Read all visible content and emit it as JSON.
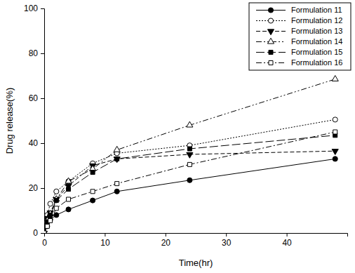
{
  "chart_data": {
    "type": "line",
    "x_label": "Time(hr)",
    "y_label": "Drug release(%)",
    "x": [
      0,
      0.5,
      1,
      2,
      4,
      8,
      12,
      24,
      48
    ],
    "series": [
      {
        "name": "Formulation 11",
        "color": "#000000",
        "marker": "circle",
        "line_style": "solid",
        "values": [
          0,
          3,
          6,
          8,
          10.5,
          14.5,
          18.5,
          23.5,
          33
        ]
      },
      {
        "name": "Formulation 12",
        "color": "#000000",
        "marker": "circle-open",
        "line_style": "dotted",
        "values": [
          0,
          8,
          13,
          18.5,
          23,
          31,
          35.5,
          39,
          50.5
        ]
      },
      {
        "name": "Formulation 13",
        "color": "#000000",
        "marker": "triangle-down",
        "line_style": "dashed",
        "values": [
          0,
          6.5,
          9,
          15,
          21,
          30,
          33,
          35,
          36.5
        ]
      },
      {
        "name": "Formulation 14",
        "color": "#000000",
        "marker": "triangle-up-open",
        "line_style": "dash-dot-dot",
        "values": [
          0,
          5.5,
          8.5,
          15,
          23,
          28.5,
          37,
          48,
          68.5
        ]
      },
      {
        "name": "Formulation 15",
        "color": "#000000",
        "marker": "square",
        "line_style": "long-dash",
        "values": [
          0,
          5,
          8,
          14.5,
          19.5,
          27,
          33,
          37.5,
          43.5
        ]
      },
      {
        "name": "Formulation 16",
        "color": "#000000",
        "marker": "square-open",
        "line_style": "dash-dot",
        "values": [
          0,
          3,
          5.5,
          11,
          15,
          18.5,
          22,
          30.5,
          45
        ]
      }
    ],
    "xlim": [
      0,
      50
    ],
    "xticks": [
      0,
      10,
      20,
      30,
      40
    ],
    "ylim": [
      0,
      100
    ],
    "yticks": [
      0,
      20,
      40,
      60,
      80,
      100
    ],
    "grid": false,
    "legend": "top-right"
  }
}
